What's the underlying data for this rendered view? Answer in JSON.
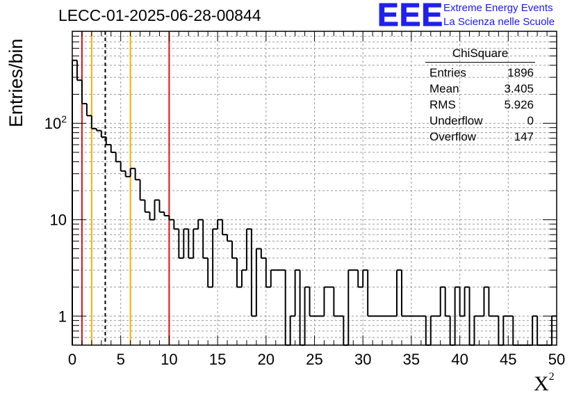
{
  "header": {
    "title": "LECC-01-2025-06-28-00844",
    "logo": {
      "mark": "EEE",
      "line1": "Extreme Energy Events",
      "line2": "La Scienza nelle Scuole",
      "color": "#2020ee"
    }
  },
  "stats_box": {
    "title": "ChiSquare",
    "rows": [
      {
        "label": "Entries",
        "value": "1896"
      },
      {
        "label": "Mean",
        "value": "3.405"
      },
      {
        "label": "RMS",
        "value": "5.926"
      },
      {
        "label": "Underflow",
        "value": "0"
      },
      {
        "label": "Overflow",
        "value": "147"
      }
    ]
  },
  "chart_data": {
    "type": "histogram",
    "title": "LECC-01-2025-06-28-00844",
    "xlabel": "X²",
    "ylabel": "Entries/bin",
    "xlim": [
      0,
      50
    ],
    "ylim": [
      0.5,
      900
    ],
    "yscale": "log",
    "bin_width": 0.5,
    "x_ticks": [
      "0",
      "5",
      "10",
      "15",
      "20",
      "25",
      "30",
      "35",
      "40",
      "45",
      "50"
    ],
    "y_ticks": [
      {
        "value": 1,
        "label": "1"
      },
      {
        "value": 10,
        "label": "10"
      },
      {
        "value": 100,
        "label": "10²"
      }
    ],
    "grid": true,
    "line_color": "#000000",
    "counts": [
      450,
      280,
      160,
      120,
      88,
      84,
      72,
      60,
      50,
      40,
      32,
      28,
      34,
      26,
      16,
      12,
      10,
      16,
      12,
      11,
      10,
      8,
      4,
      8,
      4,
      8,
      10,
      4,
      2,
      8,
      10,
      7,
      6,
      4,
      2,
      3,
      8,
      1,
      5,
      4,
      2,
      3,
      3,
      3,
      0.5,
      1,
      3,
      0.5,
      2,
      1,
      1,
      1,
      2,
      2,
      1,
      1,
      0.5,
      3,
      3,
      2,
      3,
      1,
      1,
      1,
      1,
      1,
      1,
      3,
      1,
      1,
      1,
      1,
      1,
      0.5,
      1,
      1,
      2,
      1,
      0.5,
      2,
      1,
      2,
      0.5,
      1,
      1,
      2,
      1,
      1,
      0.5,
      1,
      1,
      0.5,
      0.5,
      0.5,
      0.5,
      1,
      0.5,
      0.5,
      0.5,
      1
    ],
    "reference_lines": [
      {
        "x": 1,
        "color": "#dd1111",
        "style": "solid"
      },
      {
        "x": 2,
        "color": "#f2b200",
        "style": "solid"
      },
      {
        "x": 3.405,
        "color": "#000000",
        "style": "dashed"
      },
      {
        "x": 6,
        "color": "#f2b200",
        "style": "solid"
      },
      {
        "x": 10,
        "color": "#dd1111",
        "style": "solid"
      }
    ]
  }
}
